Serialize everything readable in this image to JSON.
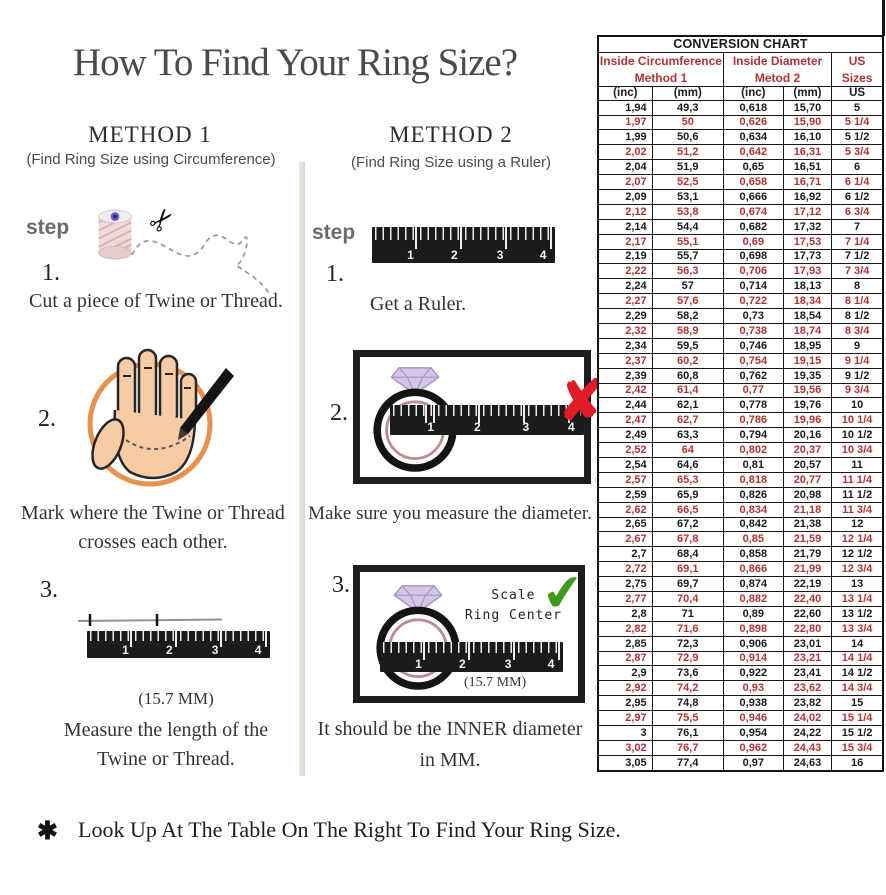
{
  "title": "How To Find Your Ring Size?",
  "ruler_numbers": [
    "1",
    "2",
    "3",
    "4"
  ],
  "method1": {
    "heading": "METHOD 1",
    "subtitle": "(Find Ring Size using Circumference)",
    "step_label": "step",
    "steps": [
      {
        "num": "1.",
        "caption_lines": [
          "Cut a piece of Twine or Thread."
        ]
      },
      {
        "num": "2.",
        "caption_lines": [
          "Mark where the Twine or Thread",
          "crosses each other."
        ]
      },
      {
        "num": "3.",
        "note": "(15.7 MM)",
        "caption_lines": [
          "Measure the length of the",
          "Twine or Thread."
        ]
      }
    ]
  },
  "method2": {
    "heading": "METHOD 2",
    "subtitle": "(Find Ring Size using a Ruler)",
    "step_label": "step",
    "steps": [
      {
        "num": "1.",
        "caption_lines": [
          "Get a Ruler."
        ]
      },
      {
        "num": "2.",
        "caption_lines": [
          "Make sure you measure the diameter."
        ]
      },
      {
        "num": "3.",
        "scale_label_lines": [
          "Scale",
          "Ring Center"
        ],
        "note": "(15.7 MM)",
        "caption_lines": [
          "It should be the INNER diameter",
          "in MM."
        ]
      }
    ]
  },
  "footer": {
    "asterisk": "✱",
    "text": "Look Up At The Table On The Right To Find Your Ring Size."
  },
  "colors": {
    "table_red": "#b23434",
    "table_black": "#1b1b1b",
    "wrong_x": "#e01c28",
    "correct_check": "#3f9a1e"
  },
  "conversion_table": {
    "title": "CONVERSION CHART",
    "group_headers": [
      {
        "lines": [
          "Inside Circumference",
          "Method 1"
        ]
      },
      {
        "lines": [
          "Inside Diameter",
          "Metod 2"
        ]
      },
      {
        "lines": [
          "US Sizes"
        ]
      }
    ],
    "sub_headers": [
      "(inc)",
      "(mm)",
      "(inc)",
      "(mm)",
      "US"
    ],
    "rows": [
      [
        "1,94",
        "49,3",
        "0,618",
        "15,70",
        "5"
      ],
      [
        "1,97",
        "50",
        "0,626",
        "15,90",
        "5 1/4"
      ],
      [
        "1,99",
        "50,6",
        "0,634",
        "16,10",
        "5 1/2"
      ],
      [
        "2,02",
        "51,2",
        "0,642",
        "16,31",
        "5 3/4"
      ],
      [
        "2,04",
        "51,9",
        "0,65",
        "16,51",
        "6"
      ],
      [
        "2,07",
        "52,5",
        "0,658",
        "16,71",
        "6 1/4"
      ],
      [
        "2,09",
        "53,1",
        "0,666",
        "16,92",
        "6 1/2"
      ],
      [
        "2,12",
        "53,8",
        "0,674",
        "17,12",
        "6 3/4"
      ],
      [
        "2,14",
        "54,4",
        "0,682",
        "17,32",
        "7"
      ],
      [
        "2,17",
        "55,1",
        "0,69",
        "17,53",
        "7 1/4"
      ],
      [
        "2,19",
        "55,7",
        "0,698",
        "17,73",
        "7 1/2"
      ],
      [
        "2,22",
        "56,3",
        "0,706",
        "17,93",
        "7 3/4"
      ],
      [
        "2,24",
        "57",
        "0,714",
        "18,13",
        "8"
      ],
      [
        "2,27",
        "57,6",
        "0,722",
        "18,34",
        "8 1/4"
      ],
      [
        "2,29",
        "58,2",
        "0,73",
        "18,54",
        "8 1/2"
      ],
      [
        "2,32",
        "58,9",
        "0,738",
        "18,74",
        "8 3/4"
      ],
      [
        "2,34",
        "59,5",
        "0,746",
        "18,95",
        "9"
      ],
      [
        "2,37",
        "60,2",
        "0,754",
        "19,15",
        "9 1/4"
      ],
      [
        "2,39",
        "60,8",
        "0,762",
        "19,35",
        "9 1/2"
      ],
      [
        "2,42",
        "61,4",
        "0,77",
        "19,56",
        "9 3/4"
      ],
      [
        "2,44",
        "62,1",
        "0,778",
        "19,76",
        "10"
      ],
      [
        "2,47",
        "62,7",
        "0,786",
        "19,96",
        "10 1/4"
      ],
      [
        "2,49",
        "63,3",
        "0,794",
        "20,16",
        "10 1/2"
      ],
      [
        "2,52",
        "64",
        "0,802",
        "20,37",
        "10 3/4"
      ],
      [
        "2,54",
        "64,6",
        "0,81",
        "20,57",
        "11"
      ],
      [
        "2,57",
        "65,3",
        "0,818",
        "20,77",
        "11 1/4"
      ],
      [
        "2,59",
        "65,9",
        "0,826",
        "20,98",
        "11 1/2"
      ],
      [
        "2,62",
        "66,5",
        "0,834",
        "21,18",
        "11 3/4"
      ],
      [
        "2,65",
        "67,2",
        "0,842",
        "21,38",
        "12"
      ],
      [
        "2,67",
        "67,8",
        "0,85",
        "21,59",
        "12 1/4"
      ],
      [
        "2,7",
        "68,4",
        "0,858",
        "21,79",
        "12 1/2"
      ],
      [
        "2,72",
        "69,1",
        "0,866",
        "21,99",
        "12 3/4"
      ],
      [
        "2,75",
        "69,7",
        "0,874",
        "22,19",
        "13"
      ],
      [
        "2,77",
        "70,4",
        "0,882",
        "22,40",
        "13 1/4"
      ],
      [
        "2,8",
        "71",
        "0,89",
        "22,60",
        "13 1/2"
      ],
      [
        "2,82",
        "71,6",
        "0,898",
        "22,80",
        "13 3/4"
      ],
      [
        "2,85",
        "72,3",
        "0,906",
        "23,01",
        "14"
      ],
      [
        "2,87",
        "72,9",
        "0,914",
        "23,21",
        "14 1/4"
      ],
      [
        "2,9",
        "73,6",
        "0,922",
        "23,41",
        "14 1/2"
      ],
      [
        "2,92",
        "74,2",
        "0,93",
        "23,62",
        "14 3/4"
      ],
      [
        "2,95",
        "74,8",
        "0,938",
        "23,82",
        "15"
      ],
      [
        "2,97",
        "75,5",
        "0,946",
        "24,02",
        "15 1/4"
      ],
      [
        "3",
        "76,1",
        "0,954",
        "24,22",
        "15 1/2"
      ],
      [
        "3,02",
        "76,7",
        "0,962",
        "24,43",
        "15 3/4"
      ],
      [
        "3,05",
        "77,4",
        "0,97",
        "24,63",
        "16"
      ]
    ]
  }
}
